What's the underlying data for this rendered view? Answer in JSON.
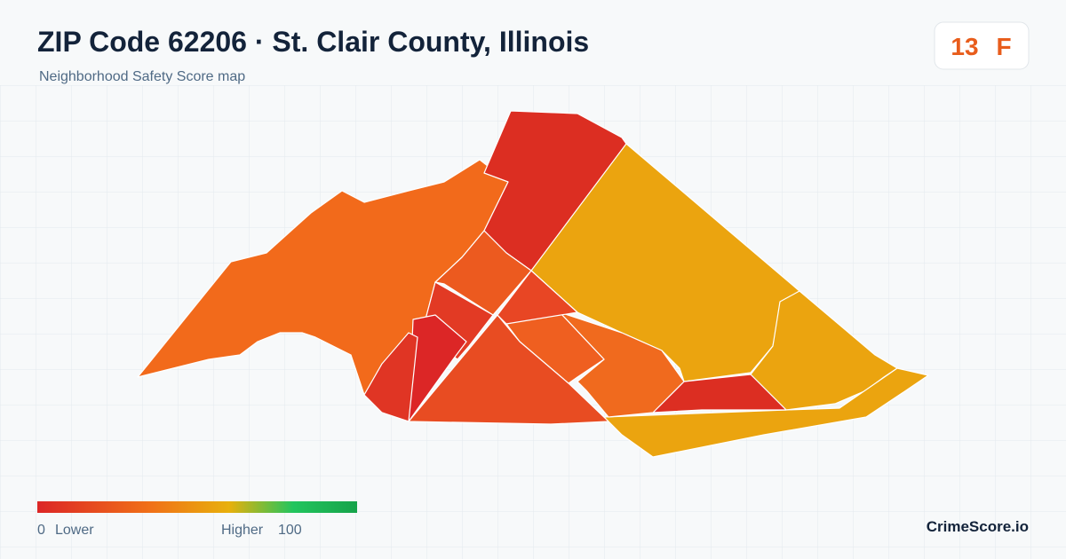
{
  "header": {
    "title": "ZIP Code 62206 · St. Clair County, Illinois",
    "subtitle": "Neighborhood Safety Score map"
  },
  "score": {
    "value": "13",
    "grade": "F"
  },
  "legend": {
    "min": "0",
    "min_label": "Lower",
    "max_label": "Higher",
    "max": "100"
  },
  "brand": "CrimeScore.io"
}
